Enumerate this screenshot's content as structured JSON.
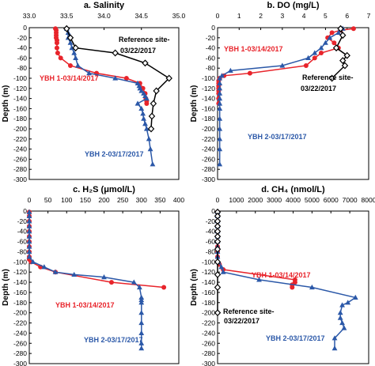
{
  "colors": {
    "ybh1": "#e8242b",
    "ybh2": "#2b58a8",
    "ref": "#000000"
  },
  "chart_data": [
    {
      "type": "line",
      "title": "a. Salinity",
      "ylabel": "Depth (m)",
      "xlim": [
        33.0,
        35.0
      ],
      "xticks": [
        "33.0",
        "33.5",
        "34.0",
        "34.5",
        "35.0"
      ],
      "ylim": [
        -300,
        0
      ],
      "yticks": [
        "0",
        "-20",
        "-40",
        "-60",
        "-80",
        "-100",
        "-120",
        "-140",
        "-160",
        "-180",
        "-200",
        "-220",
        "-240",
        "-260",
        "-280",
        "-300"
      ],
      "series": [
        {
          "name": "YBH 1-03/14/2017",
          "color": "ybh1",
          "marker": "circle",
          "x": [
            33.35,
            33.36,
            33.36,
            33.36,
            33.36,
            33.37,
            33.37,
            33.37,
            33.38,
            33.42,
            33.55,
            33.9,
            34.3,
            34.48,
            34.52,
            34.55,
            34.56,
            34.57,
            34.57
          ],
          "y": [
            -2,
            -5,
            -10,
            -15,
            -20,
            -25,
            -30,
            -40,
            -50,
            -60,
            -75,
            -90,
            -100,
            -110,
            -120,
            -130,
            -140,
            -145,
            -150
          ]
        },
        {
          "name": "YBH 2-03/17/2017",
          "color": "ybh2",
          "marker": "triangle",
          "x": [
            33.5,
            33.52,
            33.52,
            33.55,
            33.57,
            33.6,
            33.62,
            33.65,
            33.8,
            34.15,
            34.45,
            34.47,
            34.48,
            34.5,
            34.53,
            34.55,
            34.57,
            34.45,
            34.5,
            34.52,
            34.53,
            34.55,
            34.57,
            34.6,
            34.62,
            34.65
          ],
          "y": [
            -2,
            -10,
            -20,
            -30,
            -40,
            -50,
            -60,
            -75,
            -90,
            -100,
            -110,
            -115,
            -120,
            -125,
            -130,
            -135,
            -140,
            -150,
            -160,
            -170,
            -180,
            -190,
            -200,
            -220,
            -240,
            -270
          ]
        },
        {
          "name": "Reference site-03/22/2017",
          "color": "ref",
          "marker": "diamond",
          "x": [
            33.5,
            33.55,
            33.62,
            34.15,
            34.55,
            34.87,
            34.7,
            34.66,
            34.64,
            34.63
          ],
          "y": [
            -2,
            -20,
            -40,
            -50,
            -70,
            -100,
            -125,
            -150,
            -175,
            -200
          ]
        }
      ],
      "labels": [
        {
          "text": "Reference site-",
          "series": 2
        },
        {
          "text": "03/22/2017",
          "series": 2
        },
        {
          "text": "YBH 1-03/14/2017",
          "series": 0
        },
        {
          "text": "YBH 2-03/17/2017",
          "series": 1
        }
      ]
    },
    {
      "type": "line",
      "title": "b. DO (mg/L)",
      "ylabel": "Depth (m)",
      "xlim": [
        0,
        7
      ],
      "xticks": [
        "0",
        "1",
        "2",
        "3",
        "4",
        "5",
        "6",
        "7"
      ],
      "ylim": [
        -300,
        0
      ],
      "yticks": [
        "0",
        "-20",
        "-40",
        "-60",
        "-80",
        "-100",
        "-120",
        "-140",
        "-160",
        "-180",
        "-200",
        "-220",
        "-240",
        "-260",
        "-280",
        "-300"
      ],
      "series": [
        {
          "name": "YBH 1-03/14/2017",
          "color": "ybh1",
          "marker": "circle",
          "x": [
            6.3,
            5.7,
            5.3,
            5.1,
            5.4,
            5.6,
            4.8,
            4.5,
            4.1,
            1.5,
            0.3,
            0.1,
            0.05,
            0.05,
            0.05,
            0.05,
            0.05,
            0.05,
            0.05,
            0.05
          ],
          "y": [
            -2,
            -5,
            -10,
            -20,
            -30,
            -40,
            -50,
            -60,
            -75,
            -90,
            -95,
            -100,
            -105,
            -110,
            -115,
            -120,
            -125,
            -130,
            -140,
            -150
          ]
        },
        {
          "name": "YBH 2-03/17/2017",
          "color": "ybh2",
          "marker": "triangle",
          "x": [
            5.8,
            5.6,
            5.2,
            5.0,
            4.8,
            4.5,
            4.2,
            3.0,
            0.6,
            0.2,
            0.1,
            0.1,
            0.1,
            0.1,
            0.1,
            0.1,
            0.1,
            0.1,
            0.1,
            0.1,
            0.1,
            0.1
          ],
          "y": [
            -2,
            -10,
            -20,
            -30,
            -40,
            -50,
            -60,
            -75,
            -85,
            -95,
            -100,
            -110,
            -120,
            -130,
            -140,
            -150,
            -160,
            -180,
            -200,
            -220,
            -240,
            -270
          ]
        },
        {
          "name": "Reference site-03/22/2017",
          "color": "ref",
          "marker": "diamond",
          "x": [
            5.7,
            5.8,
            5.5,
            6.0,
            5.8,
            5.9,
            5.3
          ],
          "y": [
            -2,
            -15,
            -40,
            -55,
            -65,
            -75,
            -100
          ]
        }
      ],
      "labels": [
        {
          "text": "YBH 1-03/14/2017",
          "series": 0
        },
        {
          "text": "Reference site-",
          "series": 2
        },
        {
          "text": "03/22/2017",
          "series": 2
        },
        {
          "text": "YBH 2-03/17/2017",
          "series": 1
        }
      ]
    },
    {
      "type": "line",
      "title": "c. H₂S (μmol/L)",
      "ylabel": "Depth (m)",
      "xlim": [
        0,
        400
      ],
      "xticks": [
        "0",
        "50",
        "100",
        "150",
        "200",
        "250",
        "300",
        "350",
        "400"
      ],
      "ylim": [
        -300,
        0
      ],
      "yticks": [
        "0",
        "-20",
        "-40",
        "-60",
        "-80",
        "-100",
        "-120",
        "-140",
        "-160",
        "-180",
        "-200",
        "-220",
        "-240",
        "-260",
        "-280",
        "-300"
      ],
      "series": [
        {
          "name": "YBH 1-03/14/2017",
          "color": "ybh1",
          "marker": "circle",
          "x": [
            0,
            0,
            0,
            0,
            0,
            0,
            0,
            0,
            0,
            0,
            0,
            5,
            30,
            70,
            220,
            360
          ],
          "y": [
            -2,
            -10,
            -20,
            -30,
            -40,
            -50,
            -60,
            -70,
            -80,
            -90,
            -95,
            -100,
            -110,
            -120,
            -140,
            -150
          ]
        },
        {
          "name": "YBH 2-03/17/2017",
          "color": "ybh2",
          "marker": "triangle",
          "x": [
            0,
            0,
            0,
            0,
            0,
            0,
            0,
            0,
            0,
            0,
            10,
            40,
            70,
            120,
            200,
            280,
            295,
            300,
            300,
            300,
            300,
            300,
            300,
            300,
            300
          ],
          "y": [
            -2,
            -10,
            -20,
            -30,
            -40,
            -50,
            -60,
            -70,
            -80,
            -90,
            -100,
            -110,
            -120,
            -125,
            -130,
            -140,
            -150,
            -170,
            -175,
            -180,
            -200,
            -220,
            -240,
            -260,
            -270
          ]
        }
      ],
      "labels": [
        {
          "text": "YBH 1-03/14/2017",
          "series": 0
        },
        {
          "text": "YBH 2-03/17/2017",
          "series": 1
        }
      ]
    },
    {
      "type": "line",
      "title": "d. CH₄ (nmol/L)",
      "ylabel": "Depth (m)",
      "xlim": [
        0,
        8000
      ],
      "xticks": [
        "0",
        "1000",
        "2000",
        "3000",
        "4000",
        "5000",
        "6000",
        "7000",
        "8000"
      ],
      "ylim": [
        -300,
        0
      ],
      "yticks": [
        "0",
        "-20",
        "-40",
        "-60",
        "-80",
        "-100",
        "-120",
        "-140",
        "-160",
        "-180",
        "-200",
        "-220",
        "-240",
        "-260",
        "-280",
        "-300"
      ],
      "series": [
        {
          "name": "YBH 1-03/14/2017",
          "color": "ybh1",
          "marker": "circle",
          "x": [
            0,
            0,
            0,
            0,
            0,
            0,
            0,
            0,
            0,
            0,
            0,
            100,
            300,
            4100,
            4100,
            3950,
            3950
          ],
          "y": [
            -2,
            -10,
            -20,
            -30,
            -40,
            -50,
            -60,
            -70,
            -80,
            -90,
            -100,
            -105,
            -115,
            -135,
            -140,
            -145,
            -150
          ]
        },
        {
          "name": "YBH 2-03/17/2017",
          "color": "ybh2",
          "marker": "triangle",
          "x": [
            0,
            0,
            0,
            0,
            0,
            0,
            0,
            0,
            0,
            0,
            50,
            200,
            300,
            2200,
            5000,
            7300,
            6900,
            6600,
            6500,
            6500,
            6600,
            6700,
            6200,
            6200
          ],
          "y": [
            -2,
            -10,
            -20,
            -30,
            -40,
            -50,
            -60,
            -70,
            -80,
            -90,
            -100,
            -110,
            -120,
            -135,
            -150,
            -170,
            -180,
            -185,
            -200,
            -210,
            -220,
            -230,
            -250,
            -270
          ]
        },
        {
          "name": "Reference site-03/22/2017",
          "color": "ref",
          "marker": "diamond",
          "x": [
            0,
            0,
            0,
            0,
            0,
            0,
            0,
            0,
            0,
            0,
            0,
            0
          ],
          "y": [
            -2,
            -10,
            -20,
            -30,
            -40,
            -50,
            -60,
            -75,
            -100,
            -125,
            -150,
            -200
          ]
        }
      ],
      "labels": [
        {
          "text": "YBH 1-03/14/2017",
          "series": 0
        },
        {
          "text": "Reference site-",
          "series": 2
        },
        {
          "text": "03/22/2017",
          "series": 2
        },
        {
          "text": "YBH 2-03/17/2017",
          "series": 1
        }
      ]
    }
  ]
}
